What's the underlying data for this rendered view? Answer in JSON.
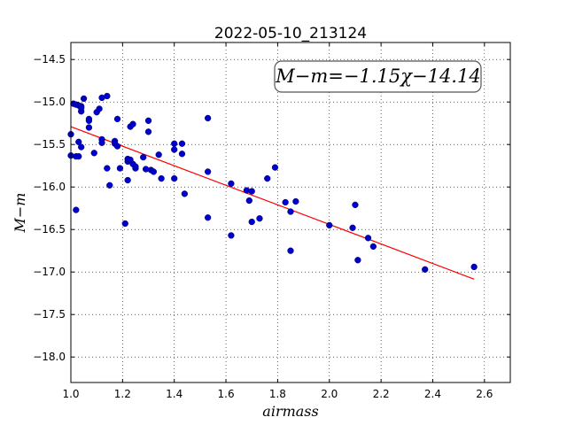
{
  "chart_data": {
    "type": "scatter",
    "title": "2022-05-10_213124",
    "xlabel": "airmass",
    "ylabel": "M−m",
    "annotation": "M−m=−1.15χ−14.14",
    "xlim": [
      1.0,
      2.7
    ],
    "ylim": [
      -18.3,
      -14.3
    ],
    "y_inverted": true,
    "grid": true,
    "xticks": [
      "1.0",
      "1.2",
      "1.4",
      "1.6",
      "1.8",
      "2.0",
      "2.2",
      "2.4",
      "2.6"
    ],
    "yticks": [
      "−14.5",
      "−15.0",
      "−15.5",
      "−16.0",
      "−16.5",
      "−17.0",
      "−17.5",
      "−18.0"
    ],
    "xtick_values": [
      1.0,
      1.2,
      1.4,
      1.6,
      1.8,
      2.0,
      2.2,
      2.4,
      2.6
    ],
    "ytick_values": [
      -14.5,
      -15.0,
      -15.5,
      -16.0,
      -16.5,
      -17.0,
      -17.5,
      -18.0
    ],
    "colors": {
      "points": "#0000cc",
      "fit": "#ff0000"
    },
    "fit": {
      "slope": -1.15,
      "intercept": -14.14,
      "x_range": [
        1.0,
        2.56
      ]
    },
    "series": [
      {
        "points": [
          [
            1.0,
            -15.38
          ],
          [
            1.0,
            -15.63
          ],
          [
            1.01,
            -15.02
          ],
          [
            1.02,
            -15.64
          ],
          [
            1.02,
            -16.27
          ],
          [
            1.02,
            -15.03
          ],
          [
            1.03,
            -15.04
          ],
          [
            1.03,
            -15.64
          ],
          [
            1.03,
            -15.47
          ],
          [
            1.04,
            -15.05
          ],
          [
            1.04,
            -15.11
          ],
          [
            1.04,
            -15.07
          ],
          [
            1.04,
            -15.53
          ],
          [
            1.05,
            -14.96
          ],
          [
            1.07,
            -15.2
          ],
          [
            1.07,
            -15.22
          ],
          [
            1.07,
            -15.3
          ],
          [
            1.09,
            -15.6
          ],
          [
            1.1,
            -15.12
          ],
          [
            1.11,
            -15.08
          ],
          [
            1.12,
            -14.95
          ],
          [
            1.12,
            -15.44
          ],
          [
            1.12,
            -15.48
          ],
          [
            1.14,
            -14.93
          ],
          [
            1.14,
            -15.78
          ],
          [
            1.15,
            -15.98
          ],
          [
            1.17,
            -15.46
          ],
          [
            1.17,
            -15.49
          ],
          [
            1.18,
            -15.2
          ],
          [
            1.18,
            -15.52
          ],
          [
            1.19,
            -15.78
          ],
          [
            1.21,
            -16.43
          ],
          [
            1.22,
            -15.7
          ],
          [
            1.22,
            -15.67
          ],
          [
            1.22,
            -15.92
          ],
          [
            1.23,
            -15.29
          ],
          [
            1.23,
            -15.68
          ],
          [
            1.24,
            -15.26
          ],
          [
            1.24,
            -15.73
          ],
          [
            1.25,
            -15.78
          ],
          [
            1.25,
            -15.76
          ],
          [
            1.28,
            -15.65
          ],
          [
            1.29,
            -15.79
          ],
          [
            1.3,
            -15.22
          ],
          [
            1.3,
            -15.35
          ],
          [
            1.31,
            -15.8
          ],
          [
            1.32,
            -15.82
          ],
          [
            1.34,
            -15.62
          ],
          [
            1.35,
            -15.9
          ],
          [
            1.4,
            -15.49
          ],
          [
            1.4,
            -15.56
          ],
          [
            1.4,
            -15.9
          ],
          [
            1.43,
            -15.49
          ],
          [
            1.43,
            -15.61
          ],
          [
            1.44,
            -16.08
          ],
          [
            1.53,
            -15.19
          ],
          [
            1.53,
            -15.82
          ],
          [
            1.53,
            -16.36
          ],
          [
            1.62,
            -16.57
          ],
          [
            1.62,
            -15.96
          ],
          [
            1.68,
            -16.04
          ],
          [
            1.69,
            -16.16
          ],
          [
            1.7,
            -16.41
          ],
          [
            1.7,
            -16.05
          ],
          [
            1.73,
            -16.37
          ],
          [
            1.76,
            -15.9
          ],
          [
            1.79,
            -15.77
          ],
          [
            1.83,
            -16.18
          ],
          [
            1.85,
            -16.29
          ],
          [
            1.85,
            -16.75
          ],
          [
            1.87,
            -16.17
          ],
          [
            2.0,
            -16.45
          ],
          [
            2.09,
            -16.48
          ],
          [
            2.1,
            -16.21
          ],
          [
            2.11,
            -16.86
          ],
          [
            2.15,
            -16.6
          ],
          [
            2.17,
            -16.7
          ],
          [
            2.37,
            -16.97
          ],
          [
            2.56,
            -16.94
          ]
        ]
      }
    ]
  }
}
